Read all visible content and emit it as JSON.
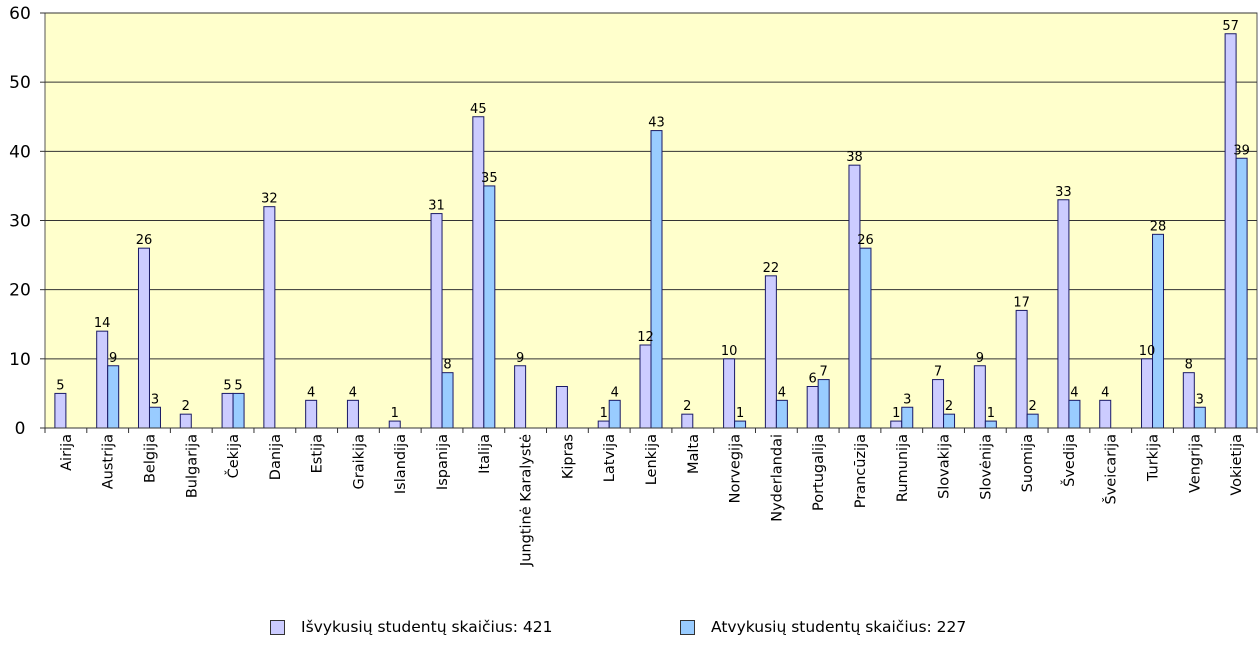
{
  "chart_data": {
    "type": "bar",
    "title": "",
    "xlabel": "",
    "ylabel": "",
    "ylim": [
      0,
      60
    ],
    "yticks": [
      0,
      10,
      20,
      30,
      40,
      50,
      60
    ],
    "grid": true,
    "legend_position": "bottom",
    "categories": [
      "Airija",
      "Austrija",
      "Belgija",
      "Bulgarija",
      "Čekija",
      "Danija",
      "Estija",
      "Graikija",
      "Islandija",
      "Ispanija",
      "Italija",
      "Jungtinė Karalystė",
      "Kipras",
      "Latvija",
      "Lenkija",
      "Malta",
      "Norvegija",
      "Nyderlandai",
      "Portugalija",
      "Prancūzija",
      "Rumunija",
      "Slovakija",
      "Slovėnija",
      "Suomija",
      "Švedija",
      "Šveicarija",
      "Turkija",
      "Vengrija",
      "Vokietija"
    ],
    "series": [
      {
        "name": "Išvykusių studentų skaičius: 421",
        "color": "#ccccff",
        "values": [
          5,
          14,
          26,
          2,
          5,
          32,
          4,
          4,
          1,
          31,
          45,
          9,
          6,
          1,
          12,
          2,
          10,
          22,
          6,
          38,
          1,
          7,
          9,
          17,
          33,
          4,
          10,
          8,
          57
        ],
        "data_labels": [
          "5",
          "14",
          "26",
          "2",
          "5",
          "32",
          "4",
          "4",
          "1",
          "31",
          "45",
          "9",
          "",
          "1",
          "12",
          "2",
          "10",
          "22",
          "6",
          "38",
          "1",
          "7",
          "9",
          "17",
          "33",
          "4",
          "10",
          "8",
          "57"
        ]
      },
      {
        "name": "Atvykusių studentų skaičius: 227",
        "color": "#99ccff",
        "values": [
          null,
          9,
          3,
          null,
          5,
          null,
          null,
          null,
          null,
          8,
          35,
          null,
          null,
          4,
          43,
          null,
          1,
          4,
          7,
          26,
          3,
          2,
          1,
          2,
          4,
          null,
          28,
          3,
          39
        ],
        "data_labels": [
          "",
          "9",
          "3",
          "",
          "5",
          "",
          "",
          "",
          "",
          "8",
          "35",
          "",
          "",
          "4",
          "43",
          "",
          "1",
          "4",
          "7",
          "26",
          "3",
          "2",
          "1",
          "2",
          "4",
          "",
          "28",
          "3",
          "39"
        ]
      }
    ],
    "plot_background": "#ffffcc"
  }
}
